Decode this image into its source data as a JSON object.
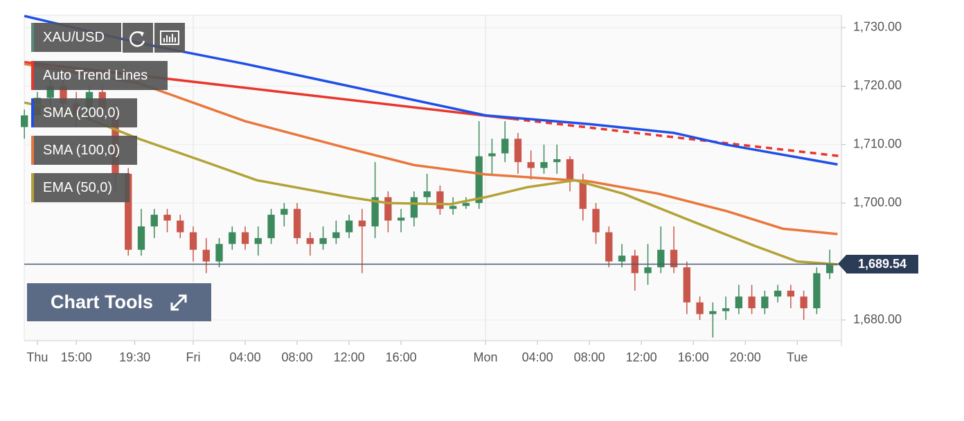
{
  "chart_data": {
    "type": "candlestick",
    "candles": {
      "name": "XAU/USD",
      "up_color": "#3c8a5e",
      "down_color": "#c9564a",
      "x": [
        -1,
        0,
        1,
        2,
        3,
        4,
        5,
        6,
        7,
        8,
        9,
        10,
        11,
        12,
        13,
        14,
        15,
        16,
        17,
        18,
        19,
        20,
        21,
        22,
        23,
        24,
        25,
        26,
        27,
        28,
        29,
        30,
        31,
        32,
        33,
        34,
        35,
        36,
        37,
        38,
        39,
        40,
        41,
        42,
        43,
        44,
        45,
        46,
        47,
        48,
        49,
        50,
        51,
        52,
        53,
        54,
        55,
        56,
        57,
        58,
        59,
        60,
        61
      ],
      "open": [
        1713,
        1715,
        1718,
        1720,
        1717,
        1715,
        1719,
        1716,
        1705,
        1692,
        1696,
        1698,
        1697,
        1695,
        1692,
        1690,
        1693,
        1695,
        1693,
        1694,
        1698,
        1699,
        1694,
        1693,
        1694,
        1695,
        1697,
        1696,
        1701,
        1697,
        1697.5,
        1701,
        1702,
        1699,
        1699.5,
        1700,
        1708,
        1708.5,
        1711,
        1707,
        1706,
        1707,
        1707.5,
        1704,
        1699,
        1695,
        1690,
        1691,
        1688,
        1689,
        1692,
        1689,
        1683,
        1681,
        1681.5,
        1682,
        1684,
        1682,
        1684,
        1685,
        1684,
        1682,
        1688
      ],
      "high": [
        1716,
        1719,
        1722,
        1721,
        1719,
        1720,
        1720,
        1717,
        1706,
        1699,
        1699,
        1699,
        1698,
        1696,
        1694,
        1694,
        1696,
        1696,
        1696,
        1699,
        1700,
        1700,
        1695,
        1696,
        1697,
        1698,
        1699,
        1707,
        1702,
        1699,
        1702,
        1705,
        1703,
        1701,
        1701,
        1714,
        1711,
        1714,
        1712,
        1709,
        1710,
        1710,
        1708,
        1705,
        1700,
        1696,
        1693,
        1692,
        1693,
        1696,
        1696,
        1690,
        1684,
        1683,
        1684,
        1686,
        1686,
        1685,
        1686,
        1686,
        1685,
        1689,
        1692
      ],
      "low": [
        1711,
        1714,
        1716,
        1715,
        1713,
        1714,
        1714,
        1702,
        1691,
        1691,
        1694,
        1695,
        1694,
        1690,
        1688,
        1689,
        1692,
        1692,
        1691,
        1693,
        1696,
        1693,
        1691,
        1692,
        1693,
        1694,
        1688,
        1694,
        1695,
        1695,
        1696,
        1700,
        1698,
        1698,
        1699,
        1699,
        1705,
        1707,
        1705,
        1704,
        1705,
        1705,
        1702,
        1697,
        1693,
        1689,
        1689,
        1685,
        1686,
        1688,
        1688,
        1681,
        1680,
        1677,
        1680,
        1681,
        1681,
        1681,
        1683,
        1682,
        1680,
        1681,
        1687
      ],
      "close": [
        1715,
        1718,
        1720,
        1717,
        1715,
        1719,
        1716,
        1705,
        1692,
        1696,
        1698,
        1697,
        1695,
        1692,
        1690,
        1693,
        1695,
        1693,
        1694,
        1698,
        1699,
        1694,
        1693,
        1694,
        1695,
        1697,
        1696,
        1701,
        1697,
        1697.5,
        1701,
        1702,
        1699,
        1699.5,
        1700,
        1708,
        1708.5,
        1711,
        1707,
        1706,
        1707,
        1707.5,
        1704,
        1699,
        1695,
        1690,
        1691,
        1688,
        1689,
        1692,
        1689,
        1683,
        1681,
        1681.5,
        1682,
        1684,
        1682,
        1684,
        1685,
        1684,
        1682,
        1688,
        1689.5
      ]
    },
    "series": [
      {
        "name": "Auto Trend Lines",
        "color": "#e8362c",
        "dash_from_index": 1,
        "x": [
          -1,
          36.6,
          61.9
        ],
        "values": [
          1724.1,
          1714.4,
          1708
        ]
      },
      {
        "name": "SMA (200,0)",
        "color": "#1f4fe6",
        "x": [
          -1,
          8,
          16,
          24,
          34.5,
          42.5,
          49,
          53,
          61.6
        ],
        "values": [
          1732,
          1727.3,
          1723.8,
          1720,
          1715,
          1713.5,
          1712,
          1710,
          1706.6
        ]
      },
      {
        "name": "SMA (100,0)",
        "color": "#e8773c",
        "x": [
          -1,
          7.8,
          16,
          24,
          29,
          34.5,
          42.5,
          47.8,
          53.1,
          57.4,
          61.6
        ],
        "values": [
          1723.8,
          1720.5,
          1714,
          1709.3,
          1706.5,
          1704.9,
          1703.7,
          1701.6,
          1698.6,
          1695.6,
          1694.7
        ]
      },
      {
        "name": "EMA (50,0)",
        "color": "#b3a236",
        "x": [
          -1,
          3,
          7.8,
          13.1,
          16.9,
          24,
          27,
          31.8,
          34.5,
          37.7,
          41.4,
          45.1,
          50.5,
          55.2,
          58.5,
          61.6
        ],
        "values": [
          1717.2,
          1715.2,
          1711,
          1706.9,
          1703.9,
          1701,
          1700,
          1699.8,
          1701,
          1702.7,
          1703.9,
          1701.6,
          1696.8,
          1692.7,
          1690,
          1689.5
        ]
      }
    ],
    "current_price": {
      "value": 1689.54,
      "label": "1,689.54"
    },
    "xlim": [
      -1.01,
      61.9
    ],
    "ylim": [
      1676.45,
      1732.13
    ],
    "xticks": [
      {
        "value": 0,
        "label": "Thu"
      },
      {
        "value": 3,
        "label": "15:00"
      },
      {
        "value": 7.5,
        "label": "19:30"
      },
      {
        "value": 12,
        "label": "Fri"
      },
      {
        "value": 16,
        "label": "04:00"
      },
      {
        "value": 20,
        "label": "08:00"
      },
      {
        "value": 24,
        "label": "12:00"
      },
      {
        "value": 28,
        "label": "16:00"
      },
      {
        "value": 34.5,
        "label": "Mon"
      },
      {
        "value": 38.5,
        "label": "04:00"
      },
      {
        "value": 42.5,
        "label": "08:00"
      },
      {
        "value": 46.5,
        "label": "12:00"
      },
      {
        "value": 50.5,
        "label": "16:00"
      },
      {
        "value": 54.5,
        "label": "20:00"
      },
      {
        "value": 58.5,
        "label": "Tue"
      }
    ],
    "yticks": [
      {
        "value": 1680,
        "label": "1,680.00"
      },
      {
        "value": 1700,
        "label": "1,700.00"
      },
      {
        "value": 1710,
        "label": "1,710.00"
      },
      {
        "value": 1720,
        "label": "1,720.00"
      },
      {
        "value": 1730,
        "label": "1,730.00"
      }
    ],
    "day_gridlines": [
      12,
      34.5
    ],
    "grid": true,
    "tools_button": "Chart Tools"
  }
}
